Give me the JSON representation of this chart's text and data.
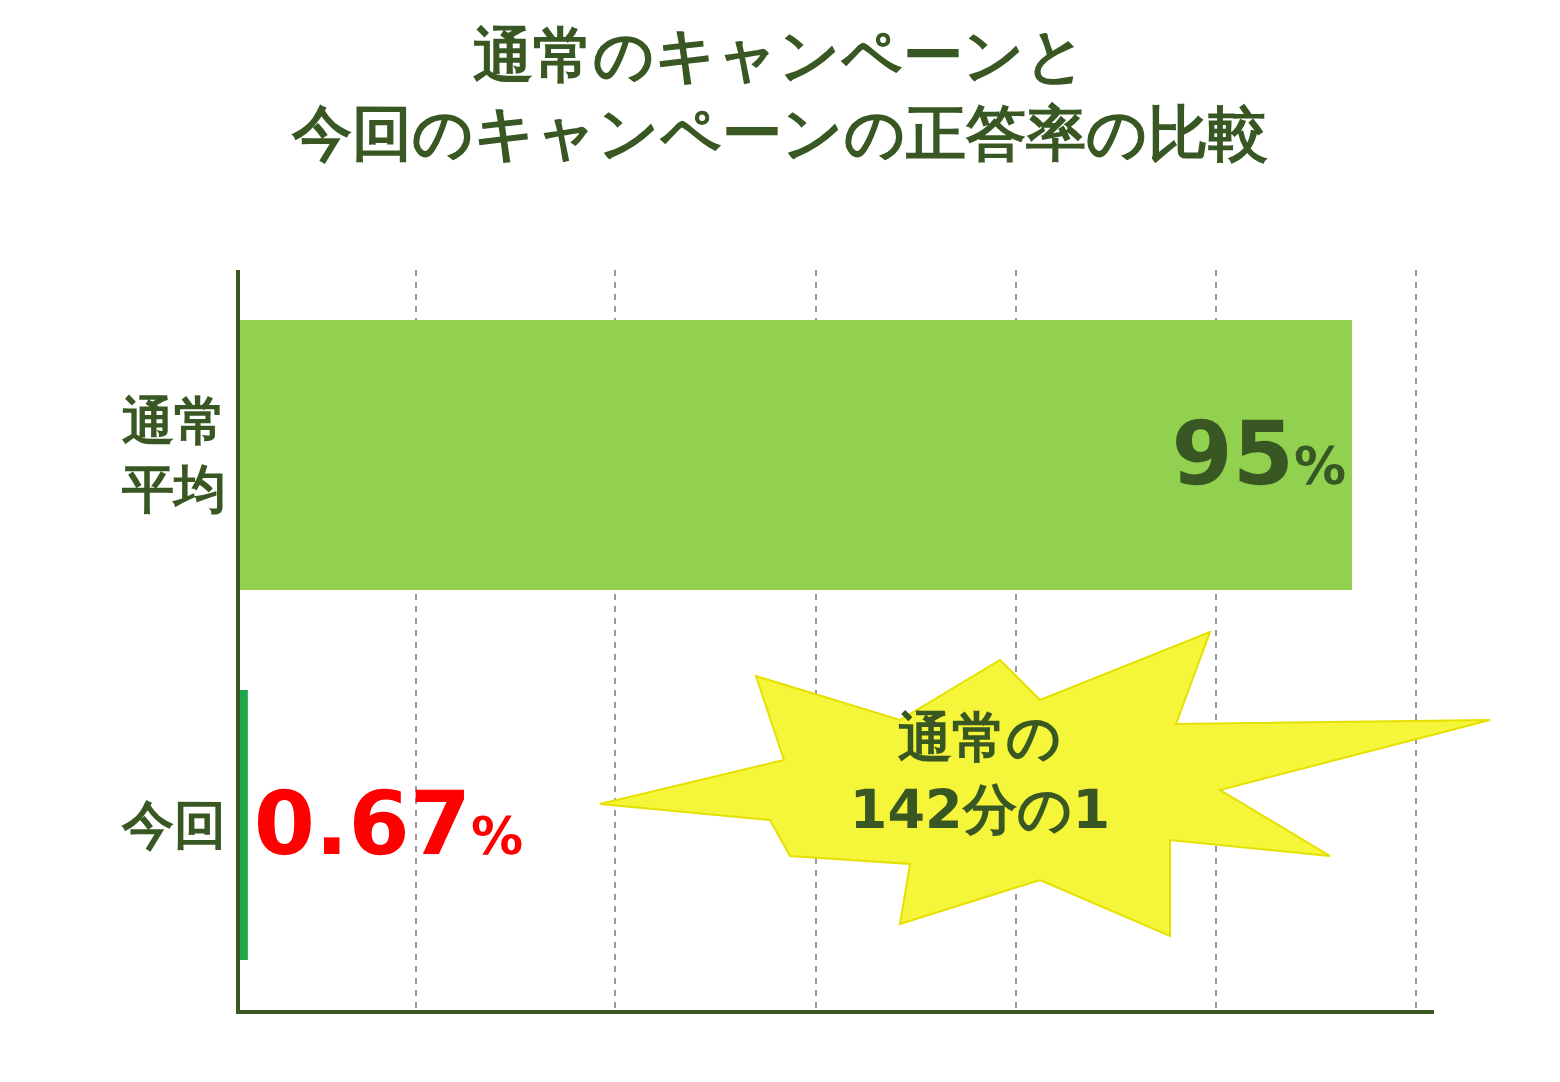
{
  "chart_data": {
    "type": "bar",
    "orientation": "horizontal",
    "title": "通常のキャンペーンと今回のキャンペーンの正答率の比較",
    "categories": [
      "通常平均",
      "今回"
    ],
    "values": [
      95,
      0.67
    ],
    "colors": [
      "#92d050",
      "#1fa64a"
    ],
    "value_labels": [
      "95%",
      "0.67%"
    ],
    "xlim": [
      0,
      102
    ],
    "xticks": [
      {
        "value": 15,
        "label": null
      },
      {
        "value": 32,
        "label": null
      },
      {
        "value": 49.2,
        "label": null
      },
      {
        "value": 66.3,
        "label": null
      },
      {
        "value": 83.4,
        "label": null
      },
      {
        "value": 100.5,
        "label": null
      }
    ],
    "grid": "x",
    "annotations": [
      "通常の\n142分の1"
    ]
  }
}
